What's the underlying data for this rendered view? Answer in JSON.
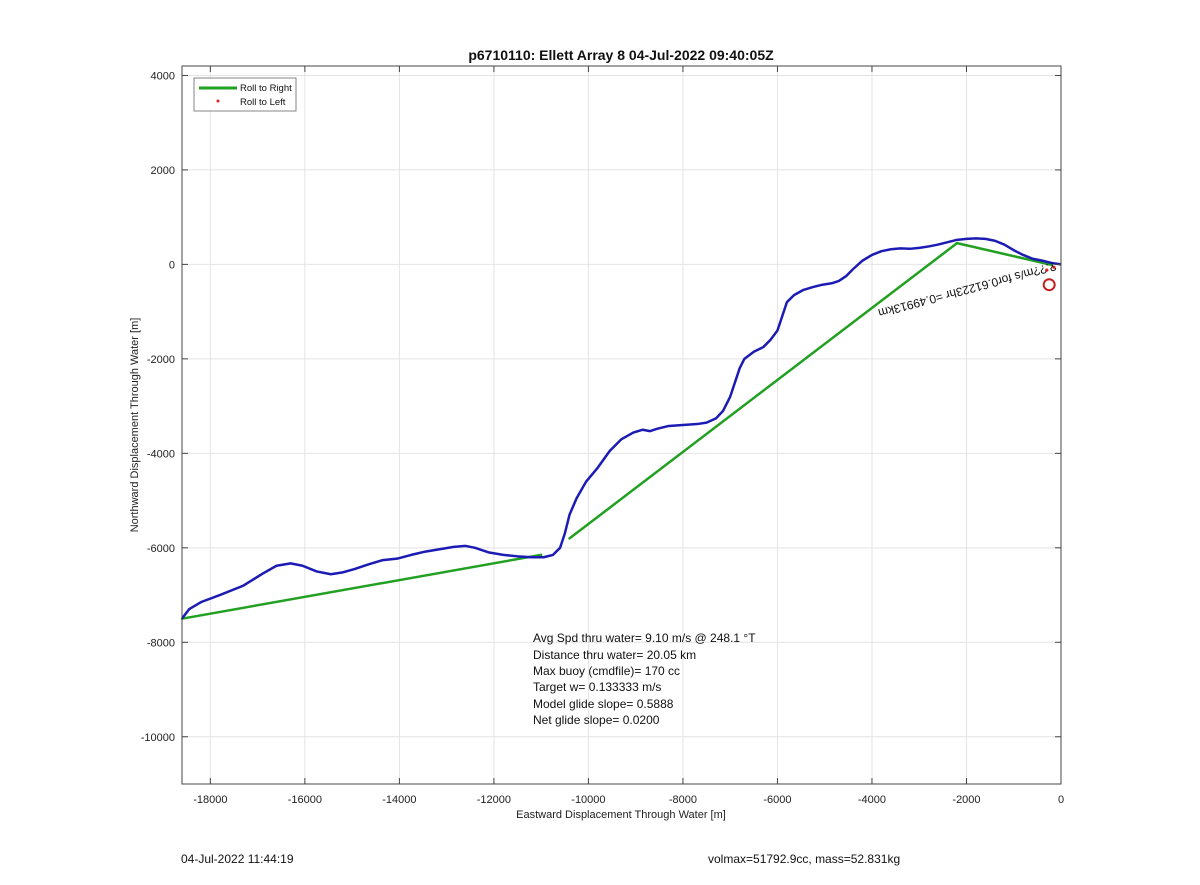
{
  "chart_data": {
    "type": "line",
    "title": "p6710110: Ellett Array 8 04-Jul-2022 09:40:05Z",
    "xlabel": "Eastward Displacement Through Water [m]",
    "ylabel": "Northward Displacement Through Water [m]",
    "xlim": [
      -18600,
      0
    ],
    "ylim": [
      -11000,
      4200
    ],
    "x_ticks": [
      "-18000",
      "-16000",
      "-14000",
      "-12000",
      "-10000",
      "-8000",
      "-6000",
      "-4000",
      "-2000",
      "0"
    ],
    "x_tick_values": [
      -18000,
      -16000,
      -14000,
      -12000,
      -10000,
      -8000,
      -6000,
      -4000,
      -2000,
      0
    ],
    "y_ticks": [
      "4000",
      "2000",
      "0",
      "-2000",
      "-4000",
      "-6000",
      "-8000",
      "-10000"
    ],
    "y_tick_values": [
      4000,
      2000,
      0,
      -2000,
      -4000,
      -6000,
      -8000,
      -10000
    ],
    "grid": true,
    "legend_position": "top-left",
    "legend": [
      {
        "label": "Roll to Right",
        "color": "#22a022"
      },
      {
        "label": "Roll to Left",
        "color": "#e02020"
      }
    ],
    "series": [
      {
        "name": "Roll to Right",
        "color": "#22a022",
        "segments": [
          {
            "x": [
              -18600,
              -11000
            ],
            "y": [
              -7500,
              -6150
            ]
          },
          {
            "x": [
              -10400,
              -2200
            ],
            "y": [
              -5800,
              450
            ]
          },
          {
            "x": [
              -2200,
              -200
            ],
            "y": [
              450,
              -10
            ]
          }
        ]
      },
      {
        "color": "#1c1cb4",
        "x": [
          -18600,
          -18450,
          -18200,
          -17800,
          -17300,
          -16900,
          -16600,
          -16300,
          -16050,
          -15750,
          -15450,
          -15200,
          -14950,
          -14650,
          -14350,
          -14050,
          -13750,
          -13450,
          -13150,
          -12850,
          -12600,
          -12400,
          -12100,
          -11800,
          -11500,
          -11200,
          -10950,
          -10750,
          -10600,
          -10500,
          -10400,
          -10250,
          -10050,
          -9800,
          -9550,
          -9300,
          -9050,
          -8850,
          -8700,
          -8550,
          -8300,
          -8000,
          -7700,
          -7500,
          -7300,
          -7150,
          -7000,
          -6900,
          -6800,
          -6700,
          -6500,
          -6300,
          -6150,
          -6000,
          -5900,
          -5800,
          -5650,
          -5450,
          -5250,
          -5050,
          -4850,
          -4700,
          -4550,
          -4400,
          -4200,
          -4000,
          -3800,
          -3600,
          -3400,
          -3200,
          -3000,
          -2800,
          -2600,
          -2400,
          -2200,
          -2000,
          -1800,
          -1600,
          -1400,
          -1200,
          -1000,
          -800,
          -600,
          -400,
          -200,
          0
        ],
        "y": [
          -7500,
          -7300,
          -7150,
          -7000,
          -6800,
          -6550,
          -6380,
          -6330,
          -6380,
          -6500,
          -6560,
          -6520,
          -6450,
          -6350,
          -6260,
          -6230,
          -6150,
          -6080,
          -6030,
          -5980,
          -5960,
          -6000,
          -6100,
          -6150,
          -6180,
          -6200,
          -6200,
          -6150,
          -6000,
          -5700,
          -5300,
          -4950,
          -4600,
          -4300,
          -3950,
          -3700,
          -3560,
          -3500,
          -3530,
          -3480,
          -3420,
          -3400,
          -3380,
          -3350,
          -3260,
          -3100,
          -2800,
          -2500,
          -2200,
          -2000,
          -1850,
          -1750,
          -1600,
          -1400,
          -1100,
          -800,
          -650,
          -540,
          -480,
          -430,
          -400,
          -350,
          -250,
          -100,
          80,
          200,
          280,
          320,
          340,
          330,
          350,
          380,
          420,
          470,
          520,
          540,
          550,
          540,
          500,
          420,
          300,
          200,
          120,
          80,
          30,
          0
        ]
      },
      {
        "name": "Roll to Left",
        "color": "#e02020",
        "x": [
          -300,
          -150
        ],
        "y": [
          -120,
          -60
        ]
      }
    ],
    "markers": [
      {
        "type": "circle",
        "x": -250,
        "y": -430,
        "color": "#c02020"
      }
    ],
    "rotated_label": "?.??m/s for0.61223hr =0.49913km",
    "annotations": [
      "Avg Spd thru water=  9.10 m/s @ 248.1 °T",
      "Distance thru water= 20.05 km",
      "Max buoy (cmdfile)= 170 cc",
      "Target w= 0.133333 m/s",
      "Model glide slope= 0.5888",
      "Net glide slope= 0.0200"
    ]
  },
  "footer": {
    "timestamp": "04-Jul-2022 11:44:19",
    "volmax": "volmax=51792.9cc, mass=52.831kg"
  }
}
